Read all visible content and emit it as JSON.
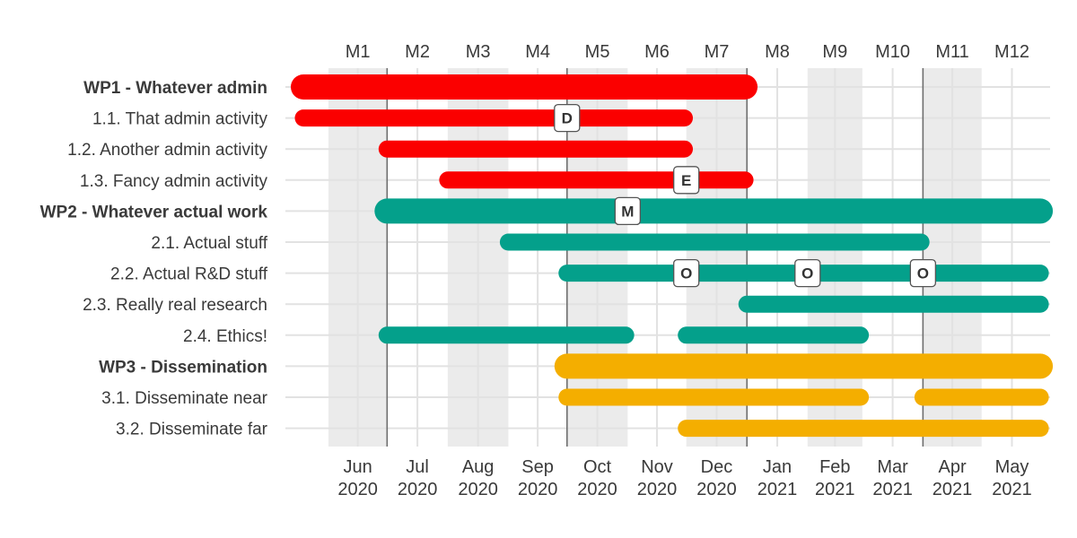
{
  "chart_data": {
    "type": "gantt",
    "title": "",
    "xlabel": "",
    "ylabel": "",
    "top_axis_labels": [
      "M1",
      "M2",
      "M3",
      "M4",
      "M5",
      "M6",
      "M7",
      "M8",
      "M9",
      "M10",
      "M11",
      "M12"
    ],
    "bottom_axis_months": [
      "Jun",
      "Jul",
      "Aug",
      "Sep",
      "Oct",
      "Nov",
      "Dec",
      "Jan",
      "Feb",
      "Mar",
      "Apr",
      "May"
    ],
    "bottom_axis_years": [
      "2020",
      "2020",
      "2020",
      "2020",
      "2020",
      "2020",
      "2020",
      "2021",
      "2021",
      "2021",
      "2021",
      "2021"
    ],
    "xlim": [
      "2020-05-10",
      "2021-06-05"
    ],
    "shaded_months": [
      "M1",
      "M3",
      "M5",
      "M7",
      "M9",
      "M11"
    ],
    "quarter_separators": [
      "2020-07-01",
      "2020-10-01",
      "2021-01-01",
      "2021-04-01"
    ],
    "colors": {
      "WP1": "#fb0000",
      "WP2": "#04a08b",
      "WP3": "#f4ae00"
    },
    "rows": [
      {
        "label": "WP1 - Whatever admin",
        "bold": true,
        "wp": "WP1",
        "segments": [
          [
            "2020-05-01",
            "2020-12-31"
          ]
        ]
      },
      {
        "label": "1.1. That admin activity",
        "bold": false,
        "wp": "WP1",
        "segments": [
          [
            "2020-05-01",
            "2020-11-30"
          ]
        ]
      },
      {
        "label": "1.2. Another admin activity",
        "bold": false,
        "wp": "WP1",
        "segments": [
          [
            "2020-07-01",
            "2020-11-30"
          ]
        ]
      },
      {
        "label": "1.3. Fancy admin activity",
        "bold": false,
        "wp": "WP1",
        "segments": [
          [
            "2020-08-01",
            "2020-12-31"
          ]
        ]
      },
      {
        "label": "WP2 - Whatever actual work",
        "bold": true,
        "wp": "WP2",
        "segments": [
          [
            "2020-07-01",
            "2021-05-31"
          ]
        ]
      },
      {
        "label": "2.1. Actual stuff",
        "bold": false,
        "wp": "WP2",
        "segments": [
          [
            "2020-09-01",
            "2021-03-31"
          ]
        ]
      },
      {
        "label": "2.2. Actual R&D stuff",
        "bold": false,
        "wp": "WP2",
        "segments": [
          [
            "2020-10-01",
            "2021-05-31"
          ]
        ]
      },
      {
        "label": "2.3. Really real research",
        "bold": false,
        "wp": "WP2",
        "segments": [
          [
            "2021-01-01",
            "2021-05-31"
          ]
        ]
      },
      {
        "label": "2.4. Ethics!",
        "bold": false,
        "wp": "WP2",
        "segments": [
          [
            "2020-07-01",
            "2020-10-31"
          ],
          [
            "2020-12-01",
            "2021-02-28"
          ]
        ]
      },
      {
        "label": "WP3 - Dissemination",
        "bold": true,
        "wp": "WP3",
        "segments": [
          [
            "2020-10-01",
            "2021-05-31"
          ]
        ]
      },
      {
        "label": "3.1. Disseminate near",
        "bold": false,
        "wp": "WP3",
        "segments": [
          [
            "2020-10-01",
            "2021-02-28"
          ],
          [
            "2021-04-01",
            "2021-05-31"
          ]
        ]
      },
      {
        "label": "3.2. Disseminate far",
        "bold": false,
        "wp": "WP3",
        "segments": [
          [
            "2020-12-01",
            "2021-05-31"
          ]
        ]
      }
    ],
    "milestones": [
      {
        "label": "D",
        "row": 1,
        "date": "2020-10-01"
      },
      {
        "label": "E",
        "row": 3,
        "date": "2020-12-01"
      },
      {
        "label": "M",
        "row": 4,
        "date": "2020-11-01"
      },
      {
        "label": "O",
        "row": 6,
        "date": "2020-12-01"
      },
      {
        "label": "O",
        "row": 6,
        "date": "2021-02-01"
      },
      {
        "label": "O",
        "row": 6,
        "date": "2021-04-01"
      }
    ]
  }
}
